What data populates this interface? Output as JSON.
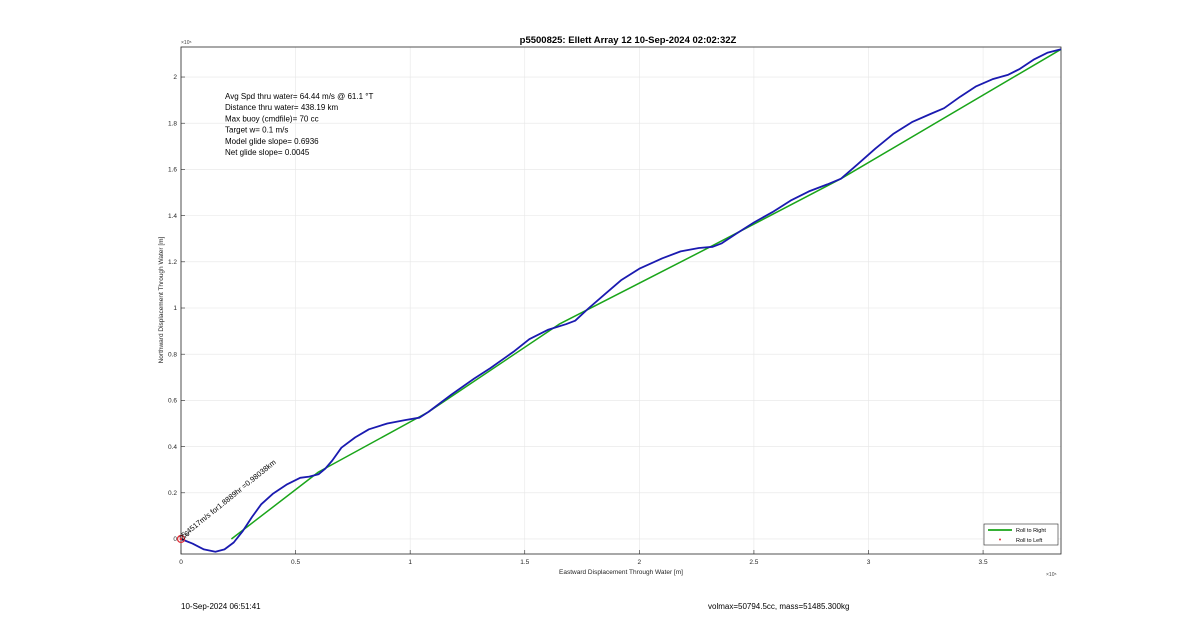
{
  "footer": {
    "timestamp": "10-Sep-2024 06:51:41",
    "vol_mass": "volmax=50794.5cc, mass=51485.300kg"
  },
  "chart_data": {
    "type": "line",
    "title": "p5500825: Ellett Array 12 10-Sep-2024 02:02:32Z",
    "xlabel": "Eastward Displacement Through Water [m]",
    "ylabel": "Northward Displacement Through Water [m]",
    "x_exponent": "×10⁵",
    "y_exponent": "×10⁵",
    "xlim": [
      0,
      384000
    ],
    "ylim": [
      -6500,
      213000
    ],
    "xticks": [
      0,
      50000,
      100000,
      150000,
      200000,
      250000,
      300000,
      350000
    ],
    "xtick_labels": [
      "0",
      "0.5",
      "1",
      "1.5",
      "2",
      "2.5",
      "3",
      "3.5"
    ],
    "yticks": [
      0,
      20000,
      40000,
      60000,
      80000,
      100000,
      120000,
      140000,
      160000,
      180000,
      200000
    ],
    "ytick_labels": [
      "0",
      "0.2",
      "0.4",
      "0.6",
      "0.8",
      "1",
      "1.2",
      "1.4",
      "1.6",
      "1.8",
      "2"
    ],
    "grid": true,
    "legend_position": "bottom-right",
    "stats_lines": [
      "Avg Spd thru water= 64.44 m/s @  61.1 °T",
      "Distance thru water= 438.19 km",
      "Max buoy (cmdfile)= 70 cc",
      "Target w= 0.1 m/s",
      "Model glide slope= 0.6936",
      "Net glide slope= 0.0045"
    ],
    "annotation": {
      "text": "5.4517m/s for1.8889hr =0.98038km",
      "overlay_text": "2.6",
      "x": 0,
      "y": 0
    },
    "series": [
      {
        "name": "Roll to Right",
        "color": "#1aa51a",
        "style": "line",
        "points": [
          [
            22000,
            0
          ],
          [
            60000,
            29000
          ],
          [
            108000,
            55000
          ],
          [
            165000,
            93000
          ],
          [
            232000,
            127000
          ],
          [
            288000,
            156000
          ],
          [
            384000,
            212000
          ]
        ]
      },
      {
        "name": "Roll to Left",
        "color": "#e0303a",
        "style": "marker",
        "points": [
          [
            0,
            0
          ]
        ]
      },
      {
        "name": "",
        "color": "#1a1ab0",
        "style": "line",
        "points": [
          [
            0,
            0
          ],
          [
            5000,
            -2000
          ],
          [
            10000,
            -4500
          ],
          [
            15000,
            -5500
          ],
          [
            19000,
            -4500
          ],
          [
            23000,
            -1500
          ],
          [
            27000,
            3500
          ],
          [
            31000,
            9500
          ],
          [
            35000,
            15000
          ],
          [
            40000,
            19500
          ],
          [
            46000,
            23500
          ],
          [
            52000,
            26500
          ],
          [
            56000,
            27000
          ],
          [
            60000,
            28000
          ],
          [
            63000,
            30500
          ],
          [
            66000,
            34000
          ],
          [
            70000,
            39500
          ],
          [
            76000,
            44000
          ],
          [
            82000,
            47500
          ],
          [
            90000,
            50000
          ],
          [
            98000,
            51500
          ],
          [
            104000,
            52500
          ],
          [
            108000,
            55000
          ],
          [
            118000,
            62500
          ],
          [
            128000,
            69500
          ],
          [
            135000,
            74000
          ],
          [
            145000,
            81000
          ],
          [
            152000,
            86500
          ],
          [
            160000,
            90500
          ],
          [
            168000,
            93000
          ],
          [
            172000,
            94500
          ],
          [
            178000,
            100000
          ],
          [
            185000,
            106000
          ],
          [
            192000,
            112000
          ],
          [
            200000,
            117000
          ],
          [
            210000,
            121500
          ],
          [
            218000,
            124500
          ],
          [
            226000,
            126000
          ],
          [
            232000,
            126500
          ],
          [
            236000,
            128000
          ],
          [
            242000,
            132000
          ],
          [
            250000,
            137000
          ],
          [
            258000,
            141500
          ],
          [
            266000,
            146500
          ],
          [
            274000,
            150500
          ],
          [
            282000,
            153500
          ],
          [
            288000,
            156000
          ],
          [
            295000,
            162000
          ],
          [
            303000,
            169000
          ],
          [
            311000,
            175500
          ],
          [
            319000,
            180500
          ],
          [
            327000,
            184000
          ],
          [
            333000,
            186500
          ],
          [
            340000,
            191500
          ],
          [
            347000,
            196000
          ],
          [
            354000,
            199000
          ],
          [
            361000,
            201000
          ],
          [
            366000,
            203500
          ],
          [
            372000,
            207500
          ],
          [
            378000,
            210500
          ],
          [
            384000,
            212000
          ]
        ]
      }
    ]
  }
}
